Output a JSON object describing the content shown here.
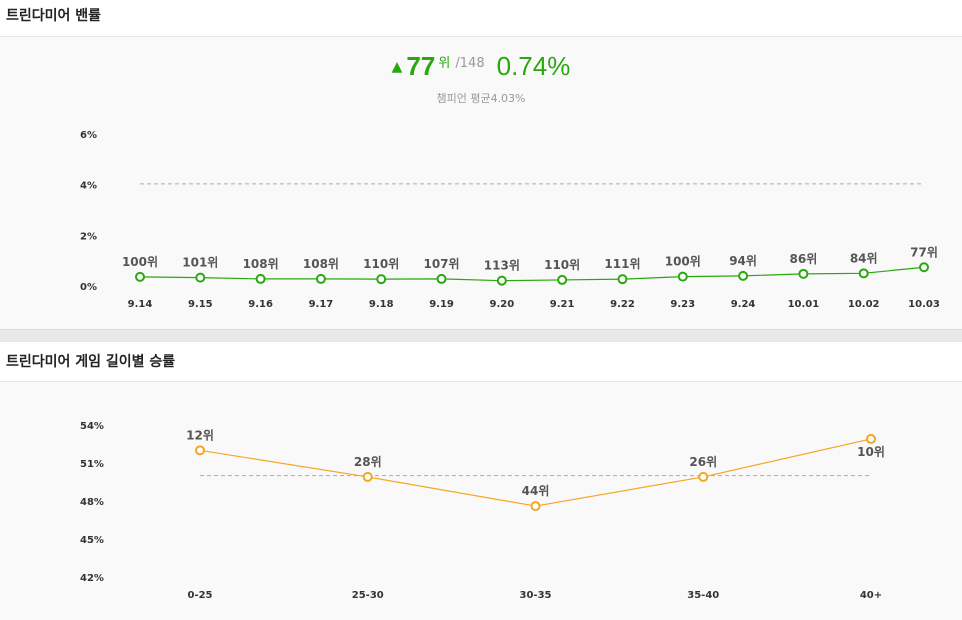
{
  "section1": {
    "title": "트린다미어 밴률",
    "rank": "77",
    "rank_unit": "위",
    "rank_total": "/148",
    "percent": "0.74%",
    "average": "챔피언 평균4.03%"
  },
  "section2": {
    "title": "트린다미어 게임 길이별 승률"
  },
  "colors": {
    "green": "#2aa80f",
    "orange": "#f5a623",
    "avg_line": "#aaaaaa"
  },
  "chart_data": [
    {
      "type": "line",
      "categories": [
        "9.14",
        "9.15",
        "9.16",
        "9.17",
        "9.18",
        "9.19",
        "9.20",
        "9.21",
        "9.22",
        "9.23",
        "9.24",
        "10.01",
        "10.02",
        "10.03"
      ],
      "y_ticks": [
        "6%",
        "4%",
        "2%",
        "0%"
      ],
      "ylim": [
        0,
        6
      ],
      "series": [
        {
          "values": [
            0.36,
            0.33,
            0.28,
            0.28,
            0.27,
            0.28,
            0.21,
            0.24,
            0.27,
            0.37,
            0.4,
            0.48,
            0.5,
            0.74
          ],
          "labels": [
            "100위",
            "101위",
            "108위",
            "108위",
            "110위",
            "107위",
            "113위",
            "110위",
            "111위",
            "100위",
            "94위",
            "86위",
            "84위",
            "77위"
          ]
        }
      ],
      "reference_line": 4.03,
      "grid": false
    },
    {
      "type": "line",
      "categories": [
        "0-25",
        "25-30",
        "30-35",
        "35-40",
        "40+"
      ],
      "y_ticks": [
        "54%",
        "51%",
        "48%",
        "45%",
        "42%"
      ],
      "ylim": [
        42,
        54
      ],
      "series": [
        {
          "values": [
            52.0,
            49.9,
            47.6,
            49.9,
            52.9
          ],
          "labels": [
            "12위",
            "28위",
            "44위",
            "26위",
            "10위"
          ]
        }
      ],
      "reference_line": 50.0,
      "grid": false
    }
  ]
}
